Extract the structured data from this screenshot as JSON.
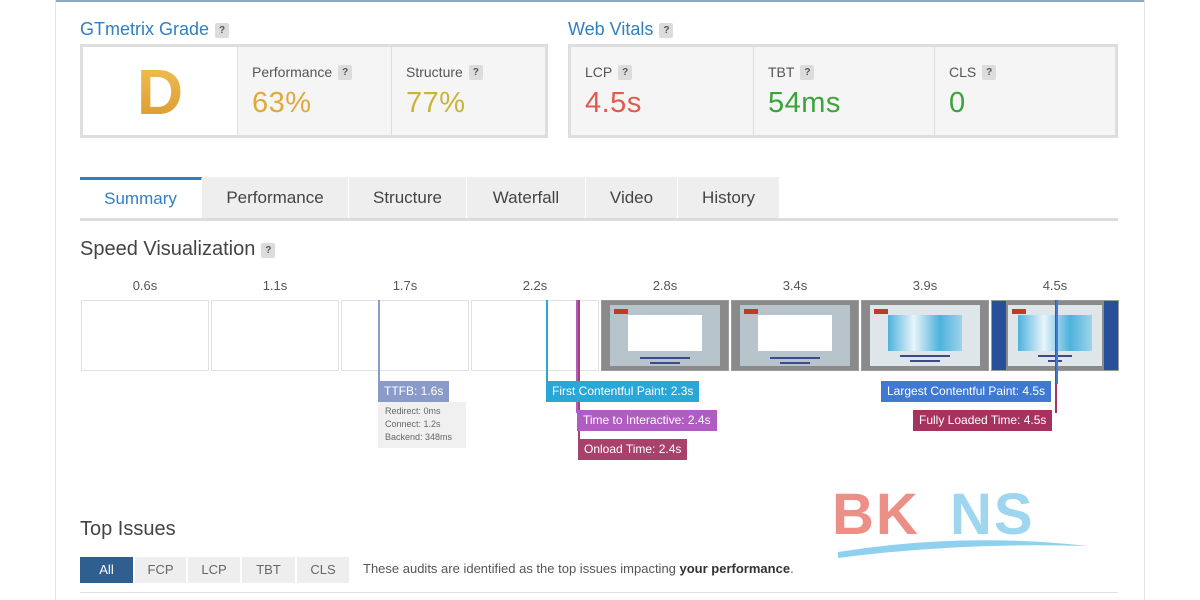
{
  "grade_section": {
    "title": "GTmetrix Grade",
    "help": "?",
    "grade": "D"
  },
  "vitals_section": {
    "title": "Web Vitals",
    "help": "?"
  },
  "scores": [
    {
      "label": "Performance",
      "help": "?",
      "value": "63%",
      "color": "#e0a93a"
    },
    {
      "label": "Structure",
      "help": "?",
      "value": "77%",
      "color": "#c9b43a"
    }
  ],
  "vitals": [
    {
      "label": "LCP",
      "help": "?",
      "value": "4.5s",
      "color": "#e05a4e"
    },
    {
      "label": "TBT",
      "help": "?",
      "value": "54ms",
      "color": "#3aa33a"
    },
    {
      "label": "CLS",
      "help": "?",
      "value": "0",
      "color": "#3aa33a"
    }
  ],
  "tabs": [
    "Summary",
    "Performance",
    "Structure",
    "Waterfall",
    "Video",
    "History"
  ],
  "active_tab": "Summary",
  "speed_viz": {
    "title": "Speed Visualization",
    "help": "?",
    "ticks": [
      "0.6s",
      "1.1s",
      "1.7s",
      "2.2s",
      "2.8s",
      "3.4s",
      "3.9s",
      "4.5s"
    ],
    "markers": {
      "ttfb": "TTFB: 1.6s",
      "fcp": "First Contentful Paint: 2.3s",
      "tti": "Time to Interactive: 2.4s",
      "onload": "Onload Time: 2.4s",
      "lcp": "Largest Contentful Paint: 4.5s",
      "fully_loaded": "Fully Loaded Time: 4.5s"
    },
    "ttfb_details": [
      "Redirect: 0ms",
      "Connect: 1.2s",
      "Backend: 348ms"
    ]
  },
  "watermark": {
    "text": "BKNS"
  },
  "top_issues": {
    "title": "Top Issues",
    "filters": [
      "All",
      "FCP",
      "LCP",
      "TBT",
      "CLS"
    ],
    "active_filter": "All",
    "note_prefix": "These audits are identified as the top issues impacting ",
    "note_bold": "your performance",
    "note_suffix": "."
  },
  "colors": {
    "accent": "#2f7fc1",
    "ttfb": "#8a9bc9",
    "fcp": "#29a8d8",
    "tti": "#b05cc2",
    "onload": "#a8416b",
    "lcp": "#3f79d4",
    "fully_loaded": "#a8325e"
  }
}
